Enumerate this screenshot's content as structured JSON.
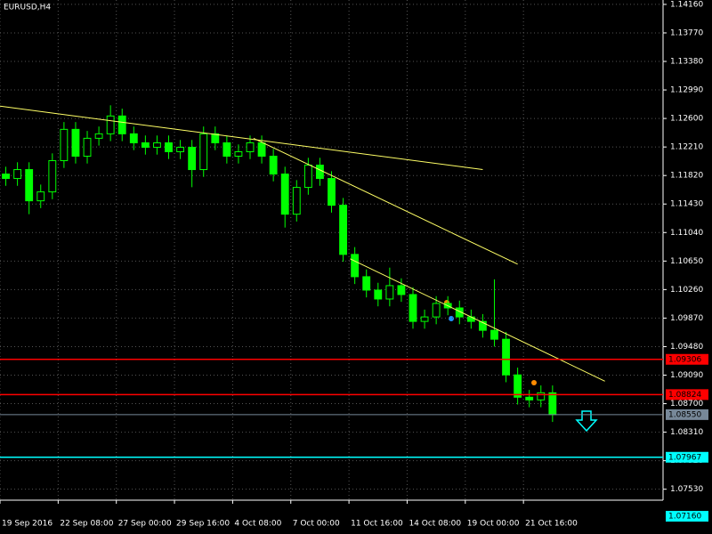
{
  "chart_data": {
    "type": "candlestick",
    "title": "EURUSD,H4",
    "color": "#00ff00",
    "open": [
      1.1184,
      1.11779,
      1.11901,
      1.11474,
      1.11596,
      1.12023,
      1.12451,
      1.12084,
      1.12329,
      1.1239,
      1.12634,
      1.1239,
      1.12267,
      1.12206,
      1.12267,
      1.12145,
      1.12206,
      1.11901,
      1.1239,
      1.12267,
      1.12084,
      1.12145,
      1.12267,
      1.12084,
      1.1184,
      1.11291,
      1.11657,
      1.11962,
      1.11779,
      1.11413,
      1.10741,
      1.10436,
      1.10253,
      1.10131,
      1.10314,
      1.10192,
      1.09825,
      1.09886,
      1.1007,
      1.10009,
      1.09886,
      1.09825,
      1.09703,
      1.09581,
      1.09093,
      1.08788,
      1.08751,
      1.08849
    ],
    "high": [
      1.1194,
      1.12001,
      1.12001,
      1.11696,
      1.12123,
      1.12551,
      1.12551,
      1.12429,
      1.1249,
      1.1278,
      1.12734,
      1.1249,
      1.12367,
      1.12367,
      1.12367,
      1.12306,
      1.12306,
      1.1249,
      1.1249,
      1.12367,
      1.12245,
      1.12367,
      1.12367,
      1.12184,
      1.1194,
      1.11757,
      1.12062,
      1.12062,
      1.11879,
      1.11513,
      1.10841,
      1.10536,
      1.10353,
      1.1056,
      1.10414,
      1.10292,
      1.09986,
      1.1017,
      1.1017,
      1.10109,
      1.09986,
      1.09925,
      1.104,
      1.09681,
      1.09193,
      1.08888,
      1.08949,
      1.08949
    ],
    "low": [
      1.11679,
      1.11679,
      1.11291,
      1.11374,
      1.11496,
      1.11923,
      1.11984,
      1.11984,
      1.12229,
      1.1229,
      1.1229,
      1.12167,
      1.12106,
      1.12106,
      1.12045,
      1.12045,
      1.1166,
      1.11801,
      1.12167,
      1.11984,
      1.11984,
      1.12045,
      1.11984,
      1.1174,
      1.11108,
      1.11191,
      1.11557,
      1.11679,
      1.11313,
      1.10641,
      1.10336,
      1.10153,
      1.10031,
      1.10031,
      1.10092,
      1.09725,
      1.09725,
      1.09786,
      1.09909,
      1.09786,
      1.09725,
      1.09603,
      1.09481,
      1.08993,
      1.08688,
      1.08651,
      1.08651,
      1.0845
    ],
    "close": [
      1.11779,
      1.11901,
      1.11474,
      1.11596,
      1.12023,
      1.12451,
      1.12084,
      1.12329,
      1.1239,
      1.12634,
      1.1239,
      1.12267,
      1.12206,
      1.12267,
      1.12145,
      1.12206,
      1.11901,
      1.1239,
      1.12267,
      1.12084,
      1.12145,
      1.12267,
      1.12084,
      1.1184,
      1.11291,
      1.11657,
      1.11962,
      1.11779,
      1.11413,
      1.10741,
      1.10436,
      1.10253,
      1.10131,
      1.10314,
      1.10192,
      1.09825,
      1.09886,
      1.1007,
      1.10009,
      1.09886,
      1.09825,
      1.09703,
      1.09581,
      1.09093,
      1.08788,
      1.08751,
      1.08849,
      1.0855
    ],
    "xlim": [
      0,
      57
    ],
    "xticks": [
      {
        "value": 0,
        "label": "19 Sep 2016"
      },
      {
        "value": 5,
        "label": "22 Sep 08:00"
      },
      {
        "value": 10,
        "label": "27 Sep 00:00"
      },
      {
        "value": 15,
        "label": "29 Sep 16:00"
      },
      {
        "value": 20,
        "label": "4 Oct 08:00"
      },
      {
        "value": 25,
        "label": "7 Oct 00:00"
      },
      {
        "value": 30,
        "label": "11 Oct 16:00"
      },
      {
        "value": 35,
        "label": "14 Oct 08:00"
      },
      {
        "value": 40,
        "label": "19 Oct 00:00"
      },
      {
        "value": 45,
        "label": "21 Oct 16:00"
      }
    ],
    "ylim": [
      1.0738,
      1.1422
    ],
    "yticks": [
      {
        "value": 1.1416,
        "label": "1.14160"
      },
      {
        "value": 1.1377,
        "label": "1.13770"
      },
      {
        "value": 1.1338,
        "label": "1.13380"
      },
      {
        "value": 1.1299,
        "label": "1.12990"
      },
      {
        "value": 1.126,
        "label": "1.12600"
      },
      {
        "value": 1.1221,
        "label": "1.12210"
      },
      {
        "value": 1.1182,
        "label": "1.11820"
      },
      {
        "value": 1.1143,
        "label": "1.11430"
      },
      {
        "value": 1.1104,
        "label": "1.11040"
      },
      {
        "value": 1.1065,
        "label": "1.10650"
      },
      {
        "value": 1.1026,
        "label": "1.10260"
      },
      {
        "value": 1.0987,
        "label": "1.09870"
      },
      {
        "value": 1.0948,
        "label": "1.09480"
      },
      {
        "value": 1.0909,
        "label": "1.09090"
      },
      {
        "value": 1.087,
        "label": "1.08700"
      },
      {
        "value": 1.0831,
        "label": "1.08310"
      },
      {
        "value": 1.0792,
        "label": "1.07920"
      },
      {
        "value": 1.0753,
        "label": "1.07530"
      }
    ],
    "grid": true,
    "levels": [
      {
        "value": 1.09306,
        "color": "#ff0000"
      },
      {
        "value": 1.08824,
        "color": "#ff0000"
      },
      {
        "value": 1.0855,
        "label": "1.08550",
        "color": "#778899"
      },
      {
        "value": 1.07967,
        "color": "#00ffff"
      },
      {
        "value": 1.0716,
        "label": "1.07160",
        "color": "#00ffff"
      }
    ],
    "trend_lines": [
      {
        "x": [
          0,
          41.5
        ],
        "y": [
          1.12768,
          1.11901
        ],
        "color": "#ffff66"
      },
      {
        "x": [
          21.8,
          44.5
        ],
        "y": [
          1.12328,
          1.10607
        ],
        "color": "#ffff66"
      },
      {
        "x": [
          30.1,
          52
        ],
        "y": [
          1.1068,
          1.09007
        ],
        "color": "#ffff66"
      }
    ]
  }
}
